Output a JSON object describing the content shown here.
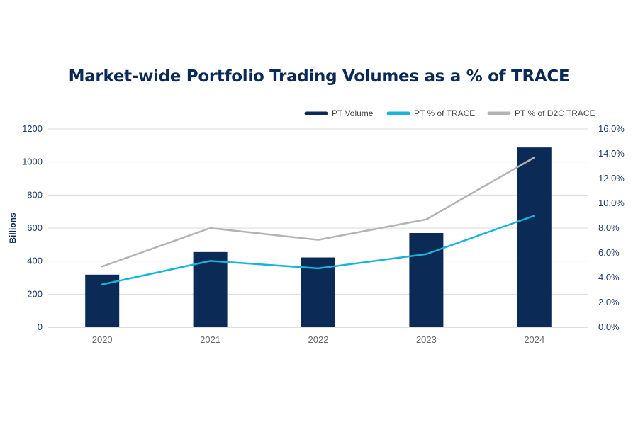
{
  "chart_data": {
    "type": "bar",
    "title": "Market-wide Portfolio Trading Volumes as a % of TRACE",
    "ylabel": "Billions",
    "categories": [
      "2020",
      "2021",
      "2022",
      "2023",
      "2024"
    ],
    "ylim": [
      0,
      1200
    ],
    "y_ticks": [
      "0",
      "200",
      "400",
      "600",
      "800",
      "1000",
      "1200"
    ],
    "y2lim": [
      0,
      16
    ],
    "y2_ticks": [
      "0.0%",
      "2.0%",
      "4.0%",
      "6.0%",
      "8.0%",
      "10.0%",
      "12.0%",
      "14.0%",
      "16.0%"
    ],
    "grid": true,
    "legend_position": "top-right",
    "series": [
      {
        "name": "PT Volume",
        "type": "bar",
        "axis": "left",
        "color": "#0b2a55",
        "values": [
          318,
          455,
          422,
          570,
          1088
        ]
      },
      {
        "name": "PT % of TRACE",
        "type": "line",
        "axis": "right",
        "color": "#18b4dc",
        "values": [
          3.45,
          5.35,
          4.75,
          5.9,
          9.0
        ]
      },
      {
        "name": "PT % of D2C TRACE",
        "type": "line",
        "axis": "right",
        "color": "#b3b3b3",
        "values": [
          4.9,
          8.0,
          7.05,
          8.7,
          13.7
        ]
      }
    ]
  }
}
